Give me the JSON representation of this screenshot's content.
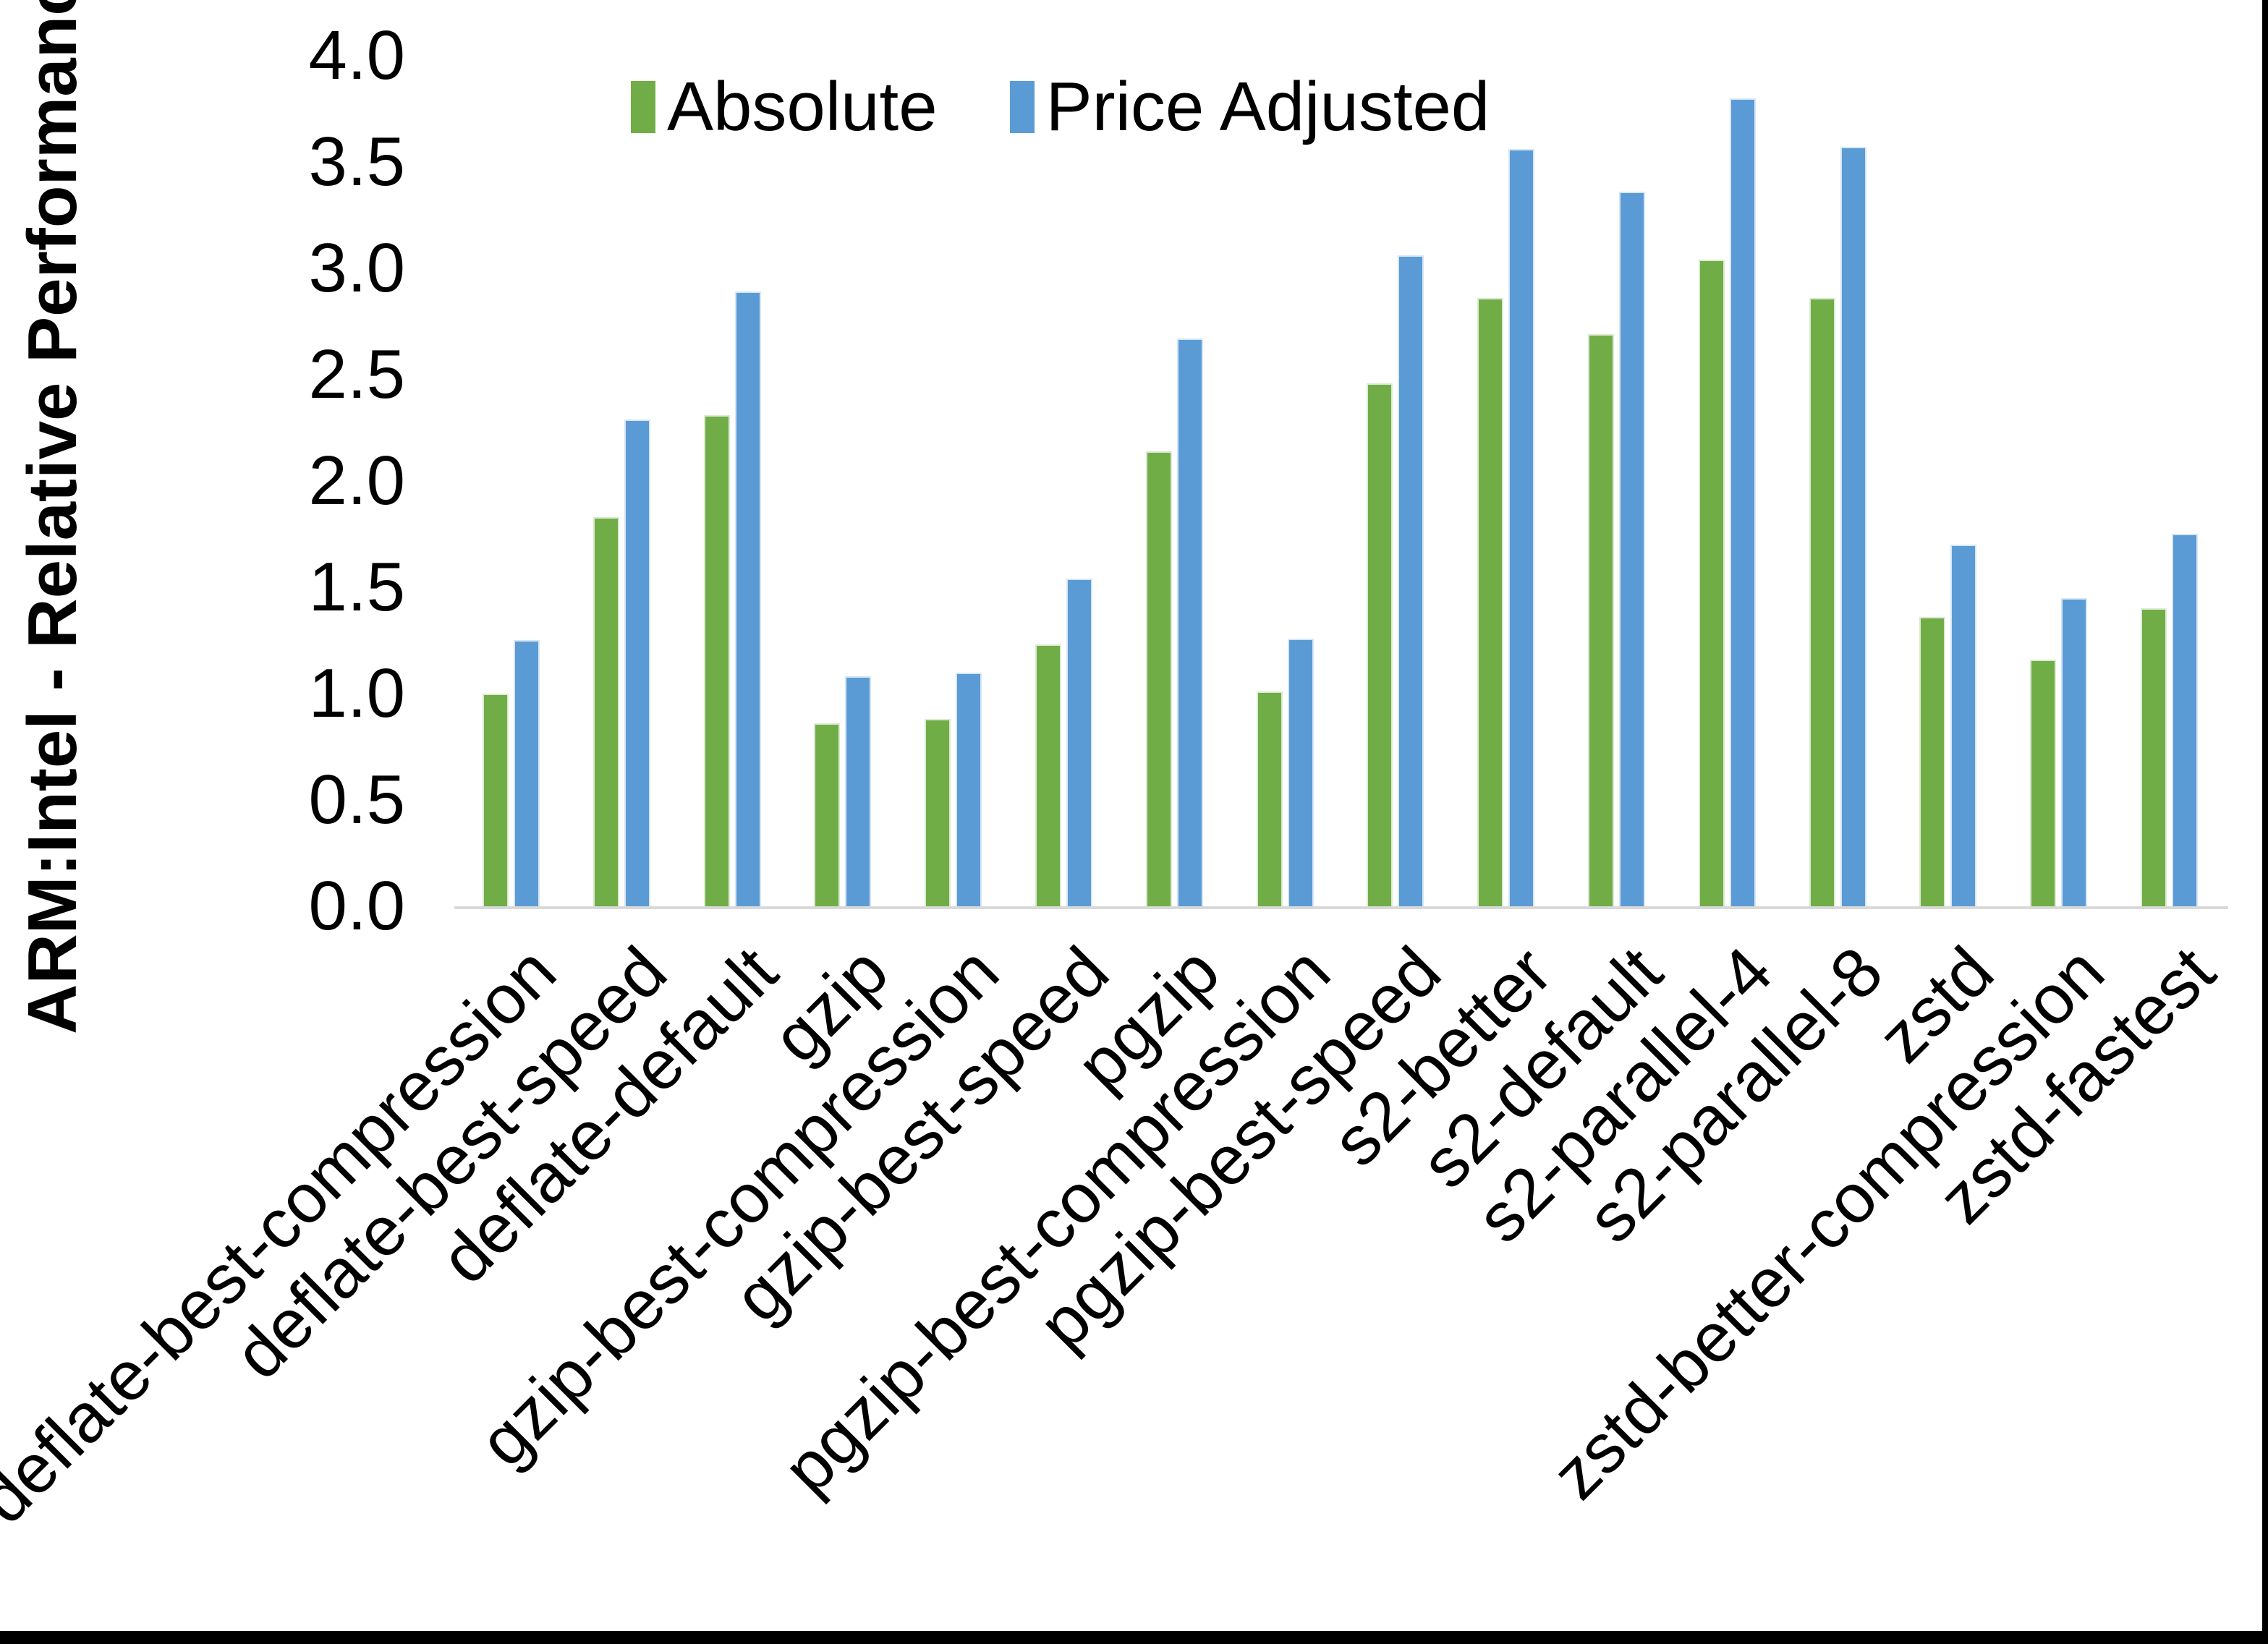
{
  "chart_data": {
    "type": "bar",
    "title": "",
    "ylabel": "ARM:Intel - Relative Performance",
    "xlabel": "",
    "ylim": [
      0.0,
      4.0
    ],
    "ytick_step": 0.5,
    "ytick_labels": [
      "0.0",
      "0.5",
      "1.0",
      "1.5",
      "2.0",
      "2.5",
      "3.0",
      "3.5",
      "4.0"
    ],
    "grid": "off",
    "legend_position": "top-center",
    "categories": [
      "deflate-best-compression",
      "deflate-best-speed",
      "deflate-default",
      "gzip",
      "gzip-best-compression",
      "gzip-best-speed",
      "pgzip",
      "pgzip-best-compression",
      "pgzip-best-speed",
      "s2-better",
      "s2-default",
      "s2-parallel-4",
      "s2-parallel-8",
      "zstd",
      "zstd-better-compression",
      "zstd-fastest"
    ],
    "series": [
      {
        "name": "Absolute",
        "color": "#70AD47",
        "values": [
          1.0,
          1.83,
          2.31,
          0.86,
          0.88,
          1.23,
          2.14,
          1.01,
          2.46,
          2.86,
          2.69,
          3.04,
          2.86,
          1.36,
          1.16,
          1.4
        ]
      },
      {
        "name": "Price Adjusted",
        "color": "#5B9BD5",
        "values": [
          1.25,
          2.29,
          2.89,
          1.08,
          1.1,
          1.54,
          2.67,
          1.26,
          3.06,
          3.56,
          3.36,
          3.8,
          3.57,
          1.7,
          1.45,
          1.75
        ]
      }
    ],
    "axis_line_color": "#D9D9D9",
    "text_color": "#000000",
    "background_color": "#FFFFFF"
  }
}
